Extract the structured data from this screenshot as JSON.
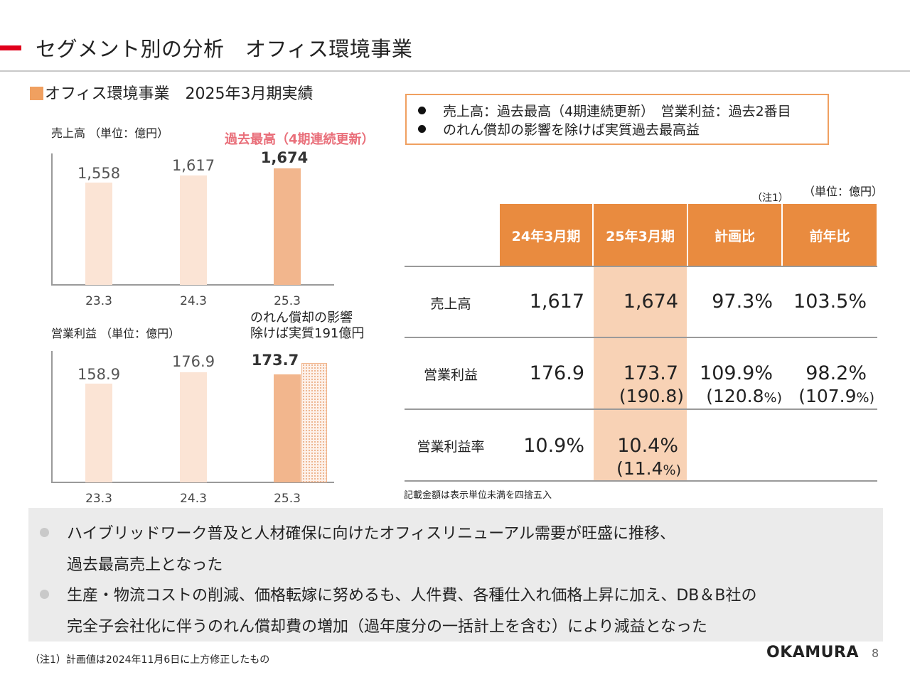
{
  "header": {
    "title": "セグメント別の分析　オフィス環境事業",
    "subtitle": "オフィス環境事業　2025年3月期実績"
  },
  "sales_chart": {
    "label": "売上高 （単位：億円）",
    "highlight": "過去最高（4期連続更新）",
    "values_text": [
      "1,558",
      "1,617",
      "1,674"
    ],
    "x_ticks": [
      "23.3",
      "24.3",
      "25.3"
    ]
  },
  "oi_chart": {
    "label": "営業利益 （単位：億円）",
    "note_line1": "のれん償却の影響",
    "note_line2": "除けば実質191億円",
    "values_text": [
      "158.9",
      "176.9",
      "173.7"
    ],
    "x_ticks": [
      "23.3",
      "24.3",
      "25.3"
    ]
  },
  "chart_data": [
    {
      "type": "bar",
      "title": "",
      "ylabel": "売上高 （単位：億円）",
      "categories": [
        "23.3",
        "24.3",
        "25.3"
      ],
      "values": [
        1558,
        1617,
        1674
      ]
    },
    {
      "type": "bar",
      "title": "",
      "ylabel": "営業利益 （単位：億円）",
      "categories": [
        "23.3",
        "24.3",
        "25.3"
      ],
      "values": [
        158.9,
        176.9,
        173.7
      ],
      "extra": {
        "category": "25.3",
        "value": 191
      }
    }
  ],
  "highlights": {
    "line1": "売上高：過去最高（4期連続更新）　営業利益：過去2番目",
    "line2": "のれん償却の影響を除けば実質過去最高益"
  },
  "table": {
    "unit": "（単位：億円）",
    "note_mark": "（注1）",
    "headers": [
      "24年3月期",
      "25年3月期",
      "計画比",
      "前年比"
    ],
    "rows": [
      {
        "label": "売上高",
        "prev": "1,617",
        "curr": "1,674",
        "plan": "97.3%",
        "yoy": "103.5%"
      },
      {
        "label": "営業利益",
        "prev": "176.9",
        "curr": "173.7",
        "curr_adj": "(190.8)",
        "plan": "109.9%",
        "plan_adj": "(120.8",
        "yoy": "98.2%",
        "yoy_adj": "(107.9"
      },
      {
        "label": "営業利益率",
        "prev": "10.9%",
        "curr": "10.4%",
        "curr_adj": "(11.4"
      }
    ],
    "adj_suffix": "%)",
    "note": "記載金額は表示単位未満を四捨五入"
  },
  "summary": {
    "b1_line1": "ハイブリッドワーク普及と人材確保に向けたオフィスリニューアル需要が旺盛に推移、",
    "b1_line2": "過去最高売上となった",
    "b2_line1": "生産・物流コストの削減、価格転嫁に努めるも、人件費、各種仕入れ価格上昇に加え、DB＆B社の",
    "b2_line2": "完全子会社化に伴うのれん償却費の増加（過年度分の一括計上を含む）により減益となった"
  },
  "footer": {
    "footnote": "（注1）計画値は2024年11月6日に上方修正したもの",
    "logo": "OKAMURA",
    "page": "8"
  },
  "colors": {
    "accent_red": "#e0001b",
    "orange": "#e98b3f",
    "bar_light": "#fbe4d5",
    "bar_dark": "#f2b68d",
    "highlight_col": "#f8d2b5",
    "highlight_text": "#e96f7a"
  }
}
